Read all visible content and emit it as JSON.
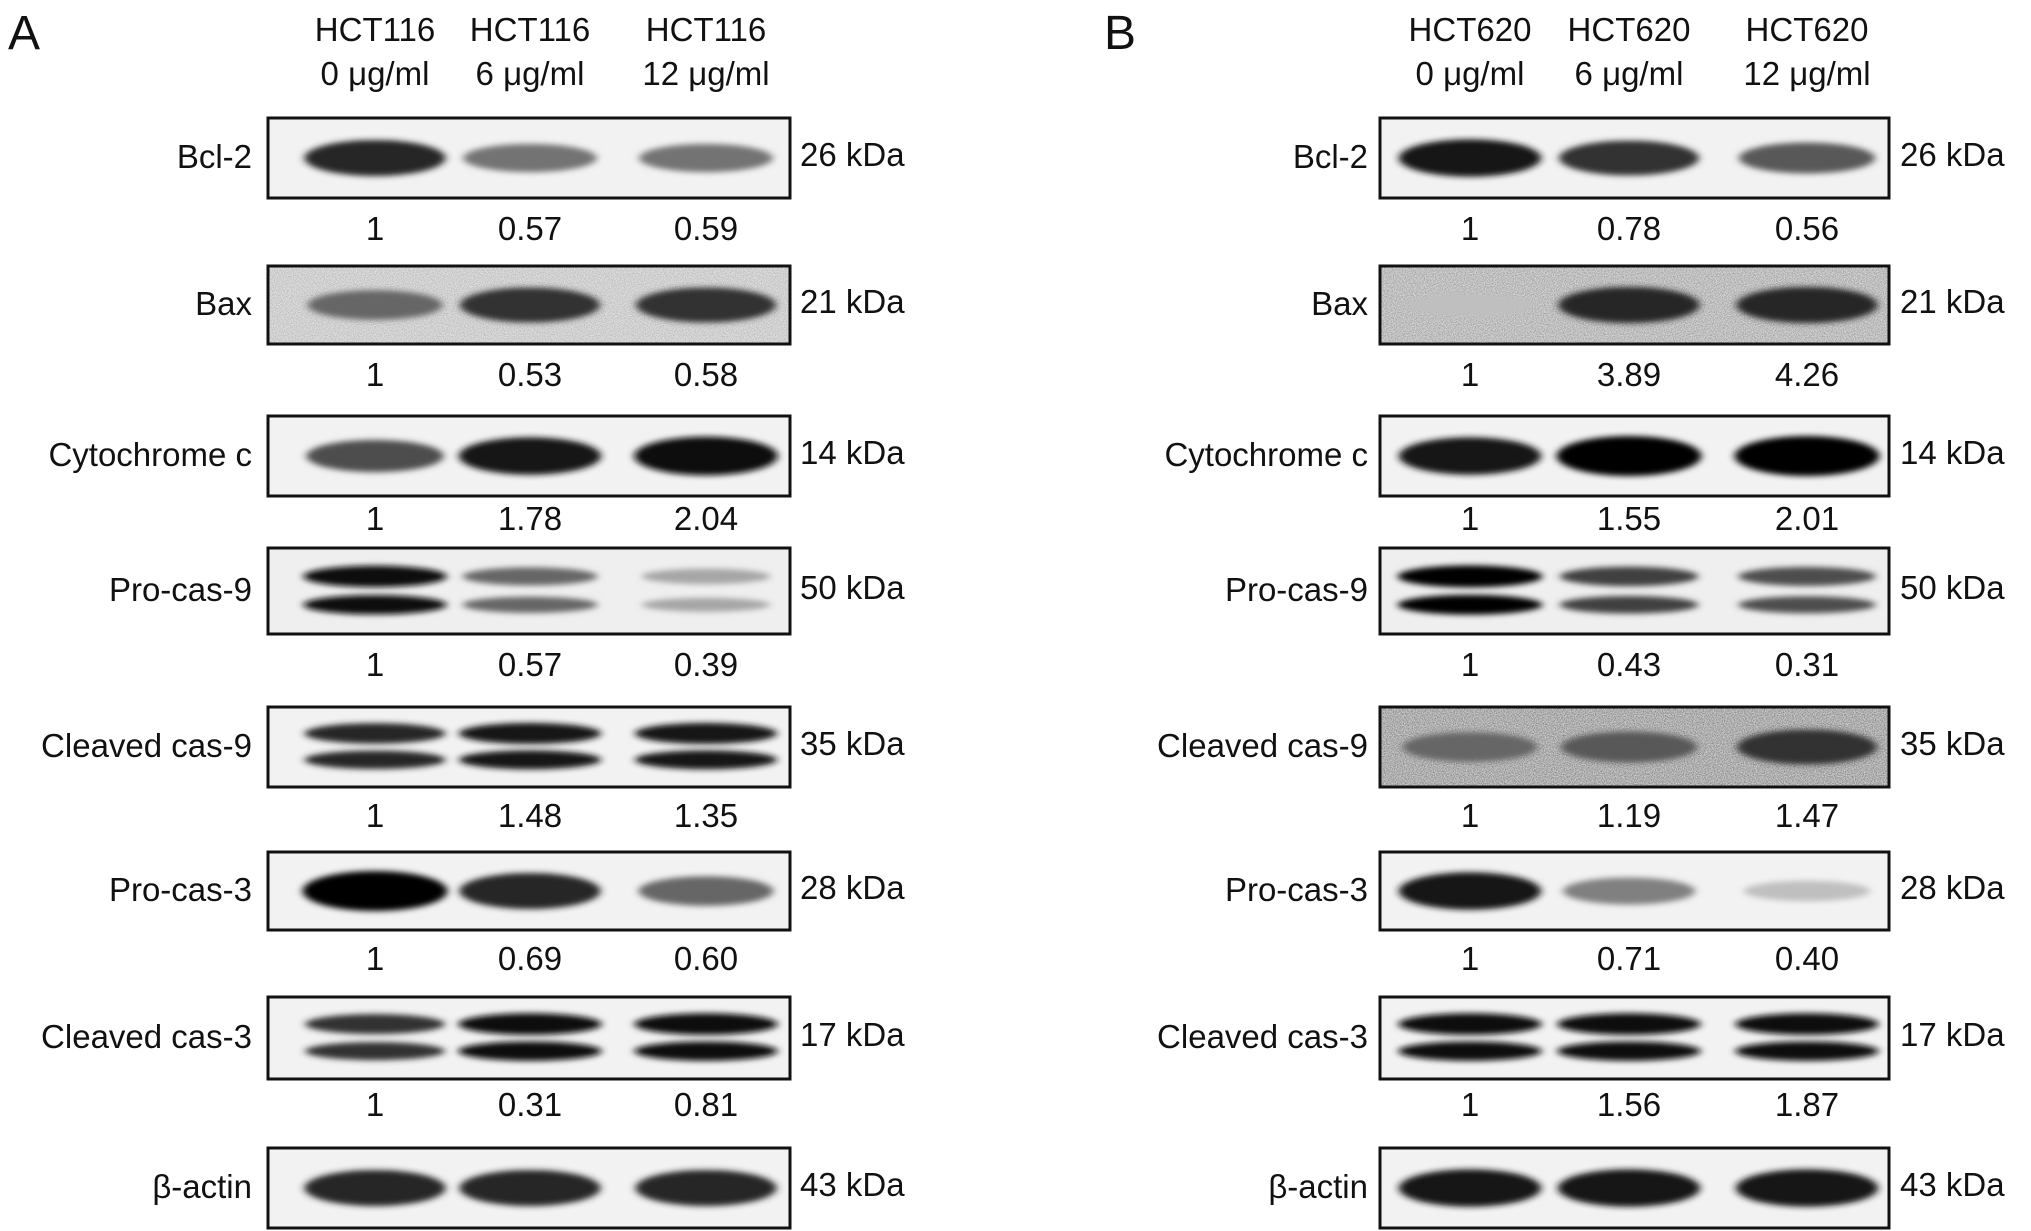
{
  "panels": [
    {
      "id": "A",
      "letter": "A",
      "lanes": [
        {
          "cell": "HCT116",
          "dose": "0 μg/ml"
        },
        {
          "cell": "HCT116",
          "dose": "6 μg/ml"
        },
        {
          "cell": "HCT116",
          "dose": "12 μg/ml"
        }
      ],
      "rows": [
        {
          "label": "Bcl-2",
          "kda": "26 kDa",
          "ratios": [
            "1",
            "0.57",
            "0.59"
          ],
          "intensities": [
            0.85,
            0.55,
            0.55
          ],
          "bands": 1,
          "noise": 0.05
        },
        {
          "label": "Bax",
          "kda": "21 kDa",
          "ratios": [
            "1",
            "0.53",
            "0.58"
          ],
          "intensities": [
            0.6,
            0.8,
            0.8
          ],
          "bands": 1,
          "noise": 0.3
        },
        {
          "label": "Cytochrome c",
          "kda": "14 kDa",
          "ratios": [
            "1",
            "1.78",
            "2.04"
          ],
          "intensities": [
            0.7,
            0.9,
            0.95
          ],
          "bands": 1,
          "noise": 0.05
        },
        {
          "label": "Pro-cas-9",
          "kda": "50 kDa",
          "ratios": [
            "1",
            "0.57",
            "0.39"
          ],
          "intensities": [
            0.95,
            0.6,
            0.35
          ],
          "bands": 2,
          "noise": 0.1
        },
        {
          "label": "Cleaved cas-9",
          "kda": "35 kDa",
          "ratios": [
            "1",
            "1.48",
            "1.35"
          ],
          "intensities": [
            0.85,
            0.9,
            0.9
          ],
          "bands": 2,
          "noise": 0.05
        },
        {
          "label": "Pro-cas-3",
          "kda": "28 kDa",
          "ratios": [
            "1",
            "0.69",
            "0.60"
          ],
          "intensities": [
            1.0,
            0.85,
            0.6
          ],
          "bands": 1,
          "noise": 0.05
        },
        {
          "label": "Cleaved cas-3",
          "kda": "17 kDa",
          "ratios": [
            "1",
            "0.31",
            "0.81"
          ],
          "intensities": [
            0.8,
            0.95,
            0.95
          ],
          "bands": 2,
          "noise": 0.05
        },
        {
          "label": "β-actin",
          "kda": "43 kDa",
          "ratios": [],
          "intensities": [
            0.85,
            0.85,
            0.85
          ],
          "bands": 1,
          "noise": 0.05
        }
      ]
    },
    {
      "id": "B",
      "letter": "B",
      "lanes": [
        {
          "cell": "HCT620",
          "dose": "0 μg/ml"
        },
        {
          "cell": "HCT620",
          "dose": "6 μg/ml"
        },
        {
          "cell": "HCT620",
          "dose": "12 μg/ml"
        }
      ],
      "rows": [
        {
          "label": "Bcl-2",
          "kda": "26 kDa",
          "ratios": [
            "1",
            "0.78",
            "0.56"
          ],
          "intensities": [
            0.9,
            0.8,
            0.65
          ],
          "bands": 1,
          "noise": 0.05
        },
        {
          "label": "Bax",
          "kda": "21 kDa",
          "ratios": [
            "1",
            "3.89",
            "4.26"
          ],
          "intensities": [
            0.25,
            0.85,
            0.85
          ],
          "bands": 1,
          "noise": 0.45
        },
        {
          "label": "Cytochrome c",
          "kda": "14 kDa",
          "ratios": [
            "1",
            "1.55",
            "2.01"
          ],
          "intensities": [
            0.9,
            1.0,
            1.0
          ],
          "bands": 1,
          "noise": 0.05
        },
        {
          "label": "Pro-cas-9",
          "kda": "50 kDa",
          "ratios": [
            "1",
            "0.43",
            "0.31"
          ],
          "intensities": [
            1.0,
            0.75,
            0.7
          ],
          "bands": 2,
          "noise": 0.1
        },
        {
          "label": "Cleaved cas-9",
          "kda": "35 kDa",
          "ratios": [
            "1",
            "1.19",
            "1.47"
          ],
          "intensities": [
            0.6,
            0.65,
            0.8
          ],
          "bands": 1,
          "noise": 0.6
        },
        {
          "label": "Pro-cas-3",
          "kda": "28 kDa",
          "ratios": [
            "1",
            "0.71",
            "0.40"
          ],
          "intensities": [
            0.9,
            0.5,
            0.25
          ],
          "bands": 1,
          "noise": 0.05
        },
        {
          "label": "Cleaved cas-3",
          "kda": "17 kDa",
          "ratios": [
            "1",
            "1.56",
            "1.87"
          ],
          "intensities": [
            0.95,
            0.95,
            0.95
          ],
          "bands": 2,
          "noise": 0.05
        },
        {
          "label": "β-actin",
          "kda": "43 kDa",
          "ratios": [],
          "intensities": [
            0.9,
            0.9,
            0.9
          ],
          "bands": 1,
          "noise": 0.05
        }
      ]
    }
  ]
}
